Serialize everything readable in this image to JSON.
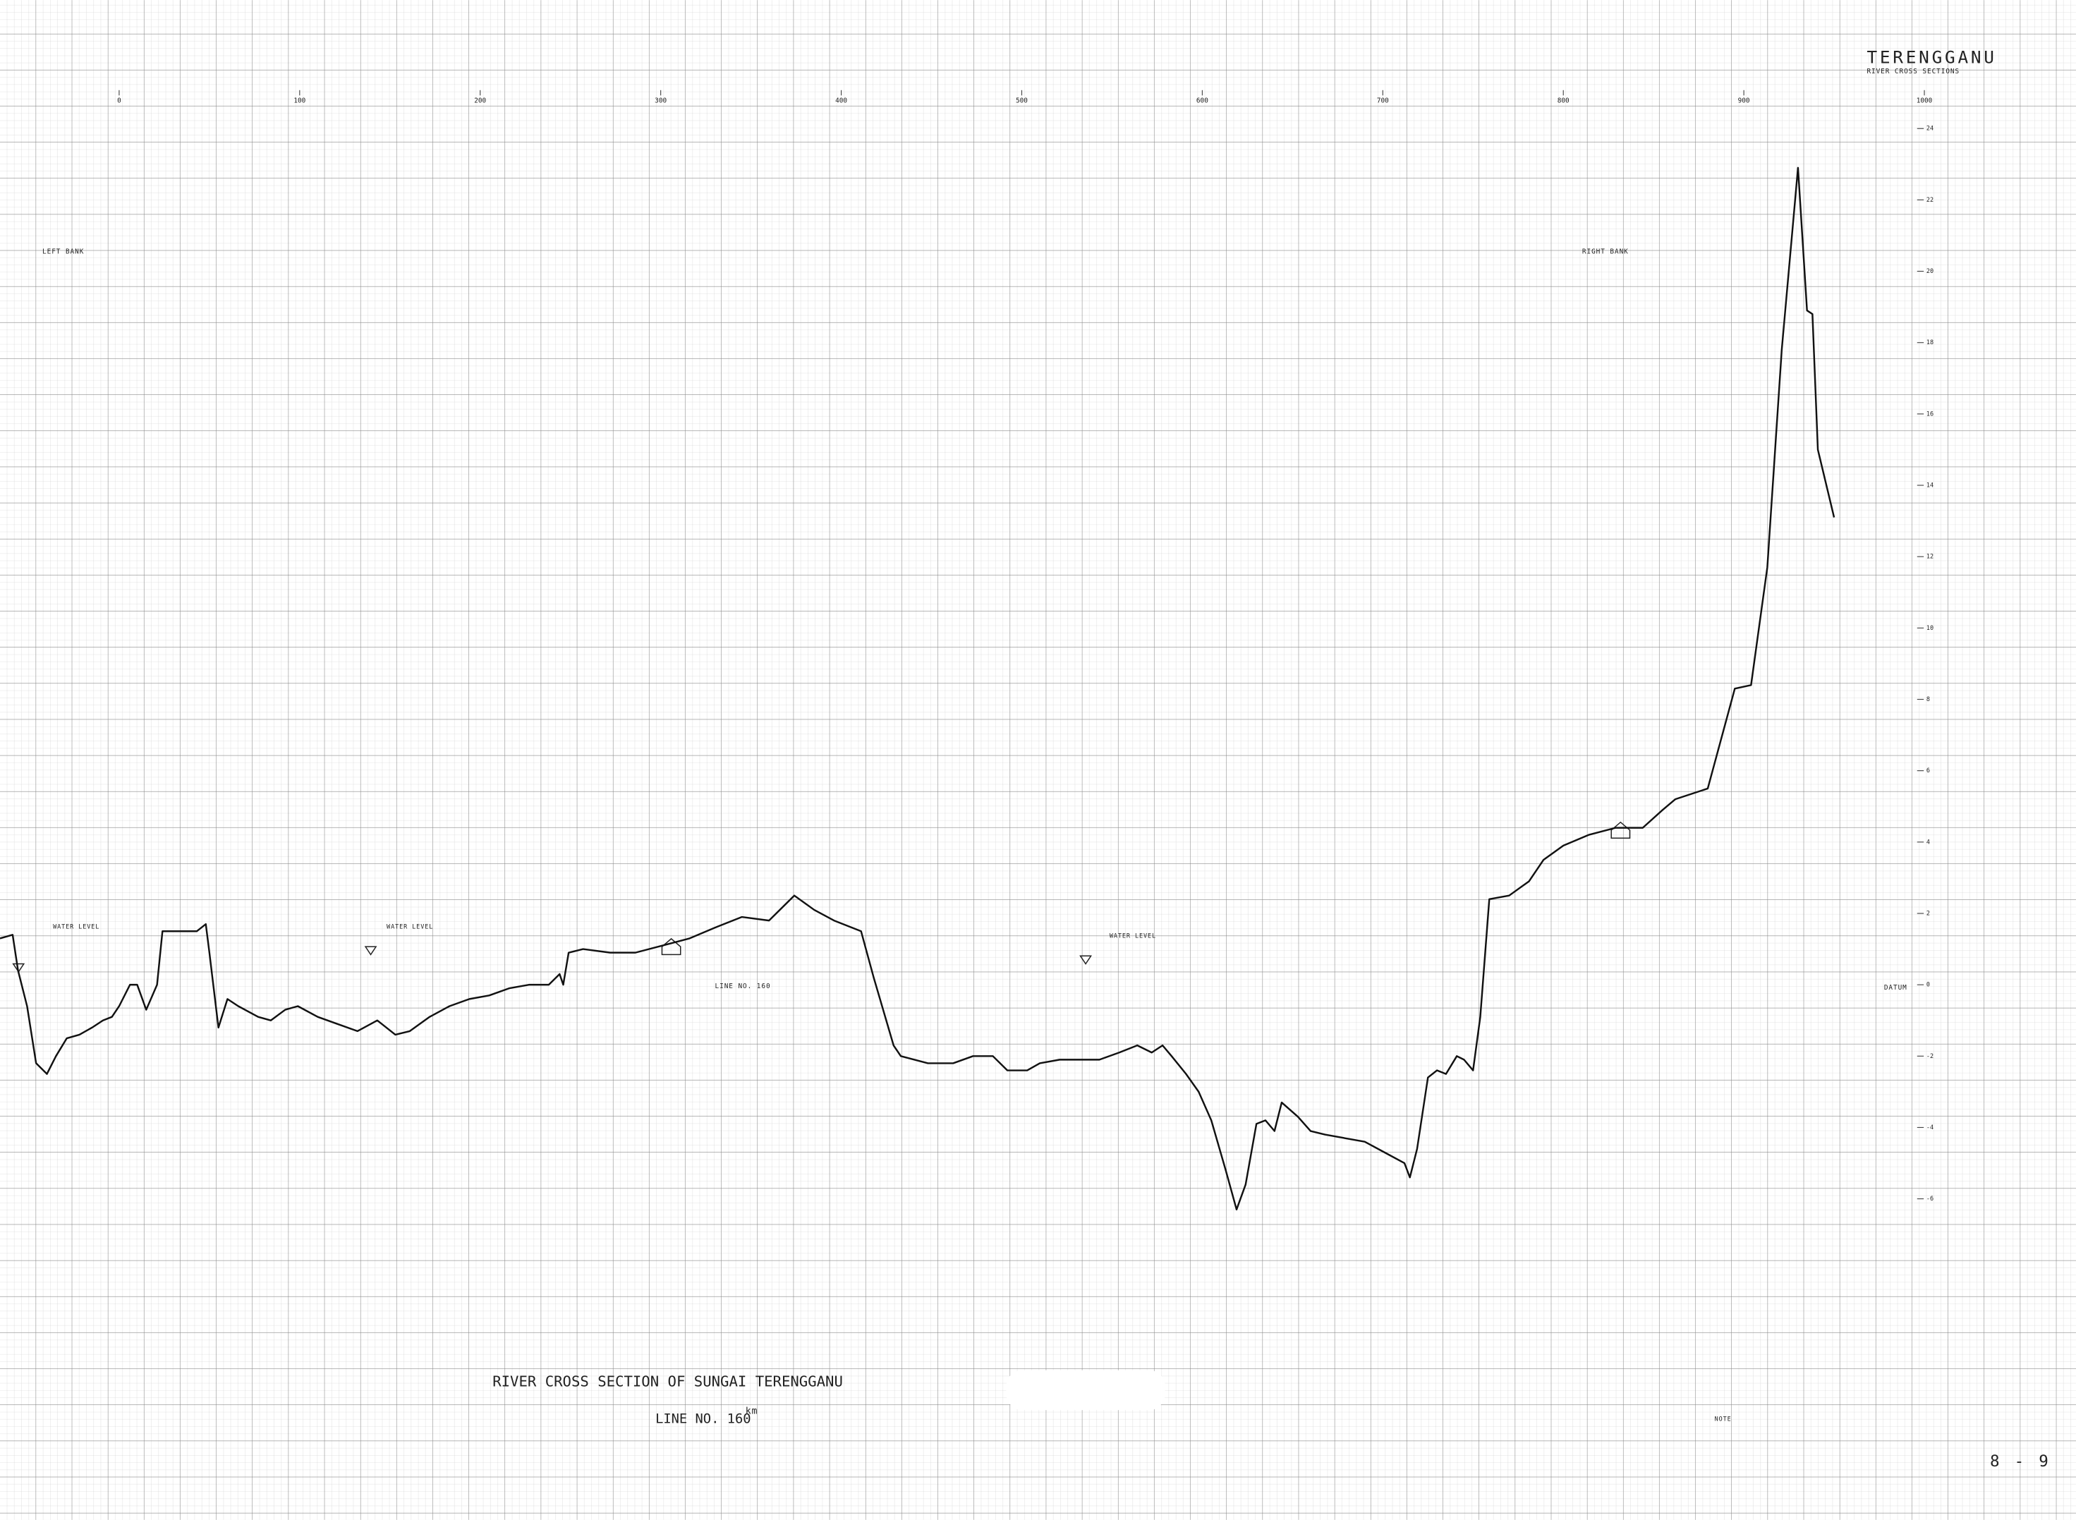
{
  "chart_data": {
    "type": "line",
    "title": "RIVER CROSS SECTION OF SUNGAI TERENGGANU",
    "subtitle": "LINE NO. 160",
    "annotations": [
      "TERENGGANU",
      "RIVER CROSS SECTIONS",
      "LEFT BANK",
      "RIGHT BANK",
      "DATUM",
      "WATER LEVEL",
      "WATER LEVEL",
      "WATER LEVEL",
      "LINE NO. 160",
      "km",
      "8 - 9",
      "NOTE"
    ],
    "x": [
      -66,
      -59,
      -56,
      -51,
      -46,
      -40,
      -35,
      -29,
      -22,
      -15,
      -9,
      -4,
      0,
      6,
      10,
      15,
      21,
      24,
      33,
      43,
      48,
      50,
      55,
      60,
      66,
      77,
      84,
      92,
      99,
      110,
      121,
      132,
      143,
      153,
      161,
      172,
      183,
      194,
      205,
      216,
      227,
      238,
      244,
      246,
      249,
      257,
      272,
      286,
      301,
      316,
      330,
      345,
      360,
      374,
      385,
      396,
      411,
      418,
      429,
      433,
      448,
      462,
      473,
      484,
      492,
      503,
      510,
      521,
      543,
      554,
      564,
      572,
      578,
      583,
      591,
      598,
      605,
      613,
      619,
      624,
      630,
      635,
      640,
      644,
      653,
      660,
      668,
      679,
      690,
      701,
      712,
      715,
      719,
      725,
      730,
      735,
      741,
      745,
      750,
      754,
      759,
      770,
      781,
      789,
      800,
      814,
      829,
      844,
      855,
      862,
      880,
      895,
      904,
      913,
      921,
      930,
      935,
      938,
      941,
      950
    ],
    "values": [
      1.3,
      1.4,
      0.4,
      -0.6,
      -2.2,
      -2.5,
      -2.0,
      -1.5,
      -1.4,
      -1.2,
      -1.0,
      -0.9,
      -0.6,
      0,
      0,
      -0.7,
      0,
      1.5,
      1.5,
      1.5,
      1.7,
      0.9,
      -1.2,
      -0.4,
      -0.6,
      -0.9,
      -1.0,
      -0.7,
      -0.6,
      -0.9,
      -1.1,
      -1.3,
      -1.0,
      -1.4,
      -1.3,
      -0.9,
      -0.6,
      -0.4,
      -0.3,
      -0.1,
      0,
      0,
      0.3,
      0,
      0.9,
      1.0,
      0.9,
      0.9,
      1.1,
      1.3,
      1.6,
      1.9,
      1.8,
      2.5,
      2.1,
      1.8,
      1.5,
      0.2,
      -1.7,
      -2.0,
      -2.2,
      -2.2,
      -2.0,
      -2.0,
      -2.4,
      -2.4,
      -2.2,
      -2.1,
      -2.1,
      -1.9,
      -1.7,
      -1.9,
      -1.7,
      -2.0,
      -2.5,
      -3.0,
      -3.8,
      -5.2,
      -6.3,
      -5.6,
      -3.9,
      -3.8,
      -4.1,
      -3.3,
      -3.7,
      -4.1,
      -4.2,
      -4.3,
      -4.4,
      -4.7,
      -5.0,
      -5.4,
      -4.6,
      -2.6,
      -2.4,
      -2.5,
      -2.0,
      -2.1,
      -2.4,
      -0.9,
      2.4,
      2.5,
      2.9,
      3.5,
      3.9,
      4.2,
      4.4,
      4.4,
      4.9,
      5.2,
      5.5,
      8.3,
      8.4,
      11.7,
      17.8,
      22.9,
      18.9,
      18.8,
      15.0,
      13.1
    ],
    "color": "#111111",
    "xlim": [
      -66,
      1084
    ],
    "xticks": [
      0,
      100,
      200,
      300,
      400,
      500,
      600,
      700,
      800,
      900,
      1000
    ],
    "ylim": [
      -15,
      27.6
    ],
    "yticks": [
      -6,
      -4,
      -2,
      0,
      2,
      4,
      6,
      8,
      10,
      12,
      14,
      16,
      18,
      20,
      22,
      24
    ],
    "grid": true
  }
}
